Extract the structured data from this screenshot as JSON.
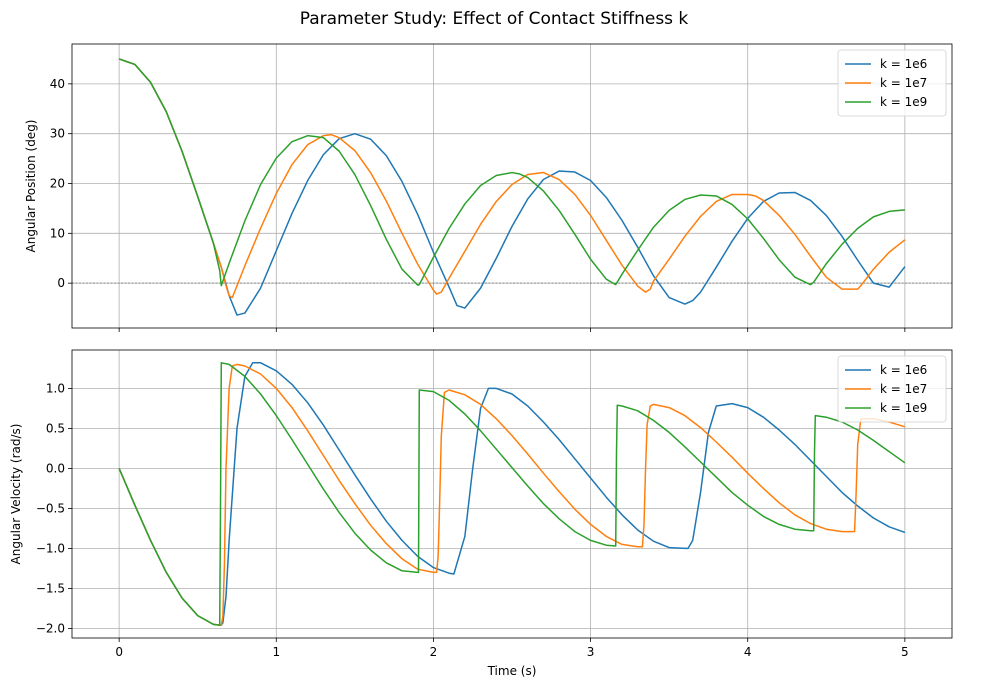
{
  "figure": {
    "title": "Parameter Study: Effect of Contact Stiffness k"
  },
  "chart_data": [
    {
      "type": "line",
      "ylabel": "Angular Position (deg)",
      "xlabel": "",
      "xlim": [
        -0.3,
        5.3
      ],
      "ylim": [
        -9,
        48
      ],
      "xticks": [
        0,
        1,
        2,
        3,
        4,
        5
      ],
      "xtick_labels_shown": false,
      "yticks": [
        0,
        10,
        20,
        30,
        40
      ],
      "grid": true,
      "zero_line": true,
      "legend_position": "top-right",
      "series": [
        {
          "name": "k = 1e6",
          "color": "#1f77b4",
          "x": [
            0,
            0.1,
            0.2,
            0.3,
            0.4,
            0.5,
            0.6,
            0.65,
            0.7,
            0.75,
            0.8,
            0.9,
            1.0,
            1.1,
            1.2,
            1.3,
            1.4,
            1.5,
            1.6,
            1.7,
            1.8,
            1.9,
            2.0,
            2.1,
            2.15,
            2.2,
            2.3,
            2.4,
            2.5,
            2.6,
            2.7,
            2.8,
            2.9,
            3.0,
            3.1,
            3.2,
            3.3,
            3.4,
            3.5,
            3.6,
            3.65,
            3.7,
            3.8,
            3.9,
            4.0,
            4.1,
            4.2,
            4.3,
            4.4,
            4.5,
            4.6,
            4.7,
            4.8,
            4.9,
            5.0
          ],
          "y": [
            45,
            43.9,
            40.3,
            34.4,
            26.5,
            17.4,
            8.0,
            3.2,
            -2.5,
            -6.4,
            -6.0,
            -1.0,
            6.5,
            14.0,
            20.6,
            25.8,
            29.0,
            30.0,
            28.9,
            25.6,
            20.4,
            13.8,
            6.2,
            -0.8,
            -4.5,
            -5.0,
            -1.0,
            5.0,
            11.4,
            16.9,
            20.8,
            22.5,
            22.3,
            20.6,
            17.2,
            12.6,
            7.2,
            1.5,
            -2.9,
            -4.2,
            -3.5,
            -1.8,
            3.2,
            8.4,
            13.0,
            16.4,
            18.1,
            18.2,
            16.6,
            13.6,
            9.4,
            4.6,
            0,
            -0.8,
            3.3
          ]
        },
        {
          "name": "k = 1e7",
          "color": "#ff7f0e",
          "x": [
            0,
            0.1,
            0.2,
            0.3,
            0.4,
            0.5,
            0.6,
            0.65,
            0.68,
            0.7,
            0.72,
            0.8,
            0.9,
            1.0,
            1.1,
            1.2,
            1.3,
            1.35,
            1.4,
            1.5,
            1.6,
            1.7,
            1.8,
            1.9,
            2.0,
            2.02,
            2.05,
            2.1,
            2.2,
            2.3,
            2.4,
            2.5,
            2.6,
            2.7,
            2.8,
            2.9,
            3.0,
            3.1,
            3.2,
            3.3,
            3.35,
            3.38,
            3.4,
            3.5,
            3.6,
            3.7,
            3.8,
            3.9,
            4.0,
            4.05,
            4.1,
            4.2,
            4.3,
            4.4,
            4.5,
            4.6,
            4.7,
            4.72,
            4.8,
            4.9,
            5.0
          ],
          "y": [
            45,
            43.9,
            40.3,
            34.4,
            26.5,
            17.4,
            8.0,
            3.2,
            -0.5,
            -2.5,
            -2.9,
            3.5,
            11.0,
            18.0,
            23.8,
            27.8,
            29.6,
            29.8,
            29.2,
            26.6,
            22.2,
            16.5,
            10.0,
            3.8,
            -1.4,
            -2.2,
            -1.8,
            1.0,
            6.4,
            11.8,
            16.4,
            19.8,
            21.8,
            22.2,
            20.8,
            17.8,
            13.6,
            8.6,
            3.6,
            -0.6,
            -1.8,
            -1.2,
            0.4,
            4.8,
            9.4,
            13.4,
            16.4,
            17.8,
            17.8,
            17.5,
            16.6,
            13.6,
            9.8,
            5.4,
            1.2,
            -1.2,
            -1.2,
            -0.5,
            2.8,
            6.2,
            8.7
          ]
        },
        {
          "name": "k = 1e9",
          "color": "#2ca02c",
          "x": [
            0,
            0.1,
            0.2,
            0.3,
            0.4,
            0.5,
            0.6,
            0.64,
            0.65,
            0.7,
            0.8,
            0.9,
            1.0,
            1.1,
            1.2,
            1.3,
            1.4,
            1.5,
            1.6,
            1.7,
            1.8,
            1.9,
            1.91,
            2.0,
            2.1,
            2.2,
            2.3,
            2.4,
            2.5,
            2.55,
            2.6,
            2.7,
            2.8,
            2.9,
            3.0,
            3.1,
            3.16,
            3.2,
            3.3,
            3.4,
            3.5,
            3.6,
            3.7,
            3.8,
            3.9,
            4.0,
            4.1,
            4.2,
            4.3,
            4.4,
            4.42,
            4.5,
            4.6,
            4.7,
            4.8,
            4.9,
            5.0
          ],
          "y": [
            45,
            43.9,
            40.3,
            34.4,
            26.5,
            17.4,
            8.0,
            2.5,
            -0.5,
            4.0,
            12.5,
            19.8,
            25.1,
            28.4,
            29.6,
            29.2,
            26.5,
            21.8,
            15.6,
            8.8,
            2.8,
            -0.4,
            -0.3,
            5.2,
            11.0,
            15.9,
            19.6,
            21.6,
            22.2,
            21.9,
            21.2,
            18.5,
            14.6,
            9.8,
            4.8,
            0.8,
            -0.3,
            1.8,
            6.6,
            11.2,
            14.6,
            16.8,
            17.7,
            17.5,
            15.8,
            12.9,
            9.0,
            4.7,
            1.2,
            -0.3,
            0.2,
            3.9,
            7.8,
            11.0,
            13.3,
            14.4,
            14.7
          ]
        }
      ]
    },
    {
      "type": "line",
      "ylabel": "Angular Velocity (rad/s)",
      "xlabel": "Time (s)",
      "xlim": [
        -0.3,
        5.3
      ],
      "ylim": [
        -2.12,
        1.48
      ],
      "xticks": [
        0,
        1,
        2,
        3,
        4,
        5
      ],
      "xtick_labels": [
        "0",
        "1",
        "2",
        "3",
        "4",
        "5"
      ],
      "yticks": [
        -2.0,
        -1.5,
        -1.0,
        -0.5,
        0.0,
        0.5,
        1.0
      ],
      "ytick_labels": [
        "−2.0",
        "−1.5",
        "−1.0",
        "−0.5",
        "0.0",
        "0.5",
        "1.0"
      ],
      "grid": true,
      "legend_position": "top-right",
      "series": [
        {
          "name": "k = 1e6",
          "color": "#1f77b4",
          "x": [
            0,
            0.1,
            0.2,
            0.3,
            0.4,
            0.5,
            0.6,
            0.65,
            0.66,
            0.68,
            0.7,
            0.75,
            0.8,
            0.85,
            0.9,
            1.0,
            1.1,
            1.2,
            1.3,
            1.4,
            1.5,
            1.6,
            1.7,
            1.8,
            1.9,
            2.0,
            2.1,
            2.13,
            2.2,
            2.25,
            2.3,
            2.35,
            2.4,
            2.5,
            2.6,
            2.7,
            2.8,
            2.9,
            3.0,
            3.1,
            3.2,
            3.3,
            3.4,
            3.5,
            3.6,
            3.62,
            3.65,
            3.7,
            3.75,
            3.8,
            3.9,
            4.0,
            4.1,
            4.2,
            4.3,
            4.4,
            4.5,
            4.6,
            4.7,
            4.8,
            4.9,
            5.0
          ],
          "y": [
            0,
            -0.46,
            -0.9,
            -1.3,
            -1.62,
            -1.84,
            -1.95,
            -1.96,
            -1.93,
            -1.6,
            -0.9,
            0.5,
            1.15,
            1.32,
            1.32,
            1.22,
            1.05,
            0.82,
            0.54,
            0.23,
            -0.08,
            -0.38,
            -0.66,
            -0.9,
            -1.1,
            -1.24,
            -1.31,
            -1.32,
            -0.85,
            0.0,
            0.75,
            1.0,
            1.0,
            0.93,
            0.78,
            0.58,
            0.36,
            0.12,
            -0.12,
            -0.36,
            -0.58,
            -0.77,
            -0.91,
            -0.99,
            -1.0,
            -1.0,
            -0.9,
            -0.3,
            0.45,
            0.78,
            0.81,
            0.76,
            0.64,
            0.48,
            0.3,
            0.1,
            -0.1,
            -0.3,
            -0.47,
            -0.62,
            -0.73,
            -0.8
          ]
        },
        {
          "name": "k = 1e7",
          "color": "#ff7f0e",
          "x": [
            0,
            0.1,
            0.2,
            0.3,
            0.4,
            0.5,
            0.6,
            0.65,
            0.66,
            0.67,
            0.68,
            0.7,
            0.72,
            0.75,
            0.8,
            0.9,
            1.0,
            1.1,
            1.2,
            1.3,
            1.4,
            1.5,
            1.6,
            1.7,
            1.8,
            1.9,
            2.0,
            2.02,
            2.03,
            2.04,
            2.05,
            2.07,
            2.1,
            2.2,
            2.3,
            2.4,
            2.5,
            2.6,
            2.7,
            2.8,
            2.9,
            3.0,
            3.1,
            3.2,
            3.3,
            3.33,
            3.34,
            3.35,
            3.36,
            3.38,
            3.4,
            3.5,
            3.6,
            3.7,
            3.8,
            3.9,
            4.0,
            4.1,
            4.2,
            4.3,
            4.4,
            4.5,
            4.6,
            4.68,
            4.69,
            4.7,
            4.72,
            4.8,
            4.9,
            5.0
          ],
          "y": [
            0,
            -0.46,
            -0.9,
            -1.3,
            -1.62,
            -1.84,
            -1.95,
            -1.96,
            -1.85,
            -1.2,
            0.0,
            1.0,
            1.28,
            1.3,
            1.28,
            1.18,
            1.0,
            0.76,
            0.47,
            0.16,
            -0.15,
            -0.44,
            -0.71,
            -0.94,
            -1.13,
            -1.26,
            -1.3,
            -1.3,
            -1.1,
            -0.4,
            0.4,
            0.95,
            0.98,
            0.92,
            0.8,
            0.62,
            0.41,
            0.18,
            -0.06,
            -0.29,
            -0.51,
            -0.7,
            -0.85,
            -0.95,
            -0.98,
            -0.98,
            -0.7,
            0.0,
            0.55,
            0.78,
            0.8,
            0.76,
            0.66,
            0.51,
            0.33,
            0.14,
            -0.06,
            -0.25,
            -0.43,
            -0.58,
            -0.69,
            -0.76,
            -0.79,
            -0.79,
            -0.3,
            0.3,
            0.62,
            0.62,
            0.58,
            0.52
          ]
        },
        {
          "name": "k = 1e9",
          "color": "#2ca02c",
          "x": [
            0,
            0.1,
            0.2,
            0.3,
            0.4,
            0.5,
            0.6,
            0.64,
            0.645,
            0.65,
            0.7,
            0.8,
            0.9,
            1.0,
            1.1,
            1.2,
            1.3,
            1.4,
            1.5,
            1.6,
            1.7,
            1.8,
            1.9,
            1.905,
            1.91,
            2.0,
            2.1,
            2.2,
            2.3,
            2.4,
            2.5,
            2.6,
            2.7,
            2.8,
            2.9,
            3.0,
            3.1,
            3.16,
            3.165,
            3.17,
            3.2,
            3.3,
            3.4,
            3.5,
            3.6,
            3.7,
            3.8,
            3.9,
            4.0,
            4.1,
            4.2,
            4.3,
            4.4,
            4.42,
            4.425,
            4.43,
            4.5,
            4.6,
            4.7,
            4.8,
            4.9,
            5.0
          ],
          "y": [
            0,
            -0.46,
            -0.9,
            -1.3,
            -1.62,
            -1.84,
            -1.95,
            -1.96,
            -0.5,
            1.32,
            1.3,
            1.15,
            0.93,
            0.66,
            0.36,
            0.05,
            -0.26,
            -0.55,
            -0.81,
            -1.02,
            -1.18,
            -1.28,
            -1.3,
            -1.3,
            0.98,
            0.96,
            0.85,
            0.68,
            0.47,
            0.24,
            0.01,
            -0.22,
            -0.44,
            -0.63,
            -0.79,
            -0.9,
            -0.96,
            -0.97,
            0.2,
            0.79,
            0.78,
            0.72,
            0.6,
            0.45,
            0.27,
            0.08,
            -0.11,
            -0.3,
            -0.46,
            -0.6,
            -0.7,
            -0.76,
            -0.78,
            -0.78,
            0.2,
            0.66,
            0.64,
            0.58,
            0.48,
            0.35,
            0.21,
            0.07
          ]
        }
      ]
    }
  ]
}
